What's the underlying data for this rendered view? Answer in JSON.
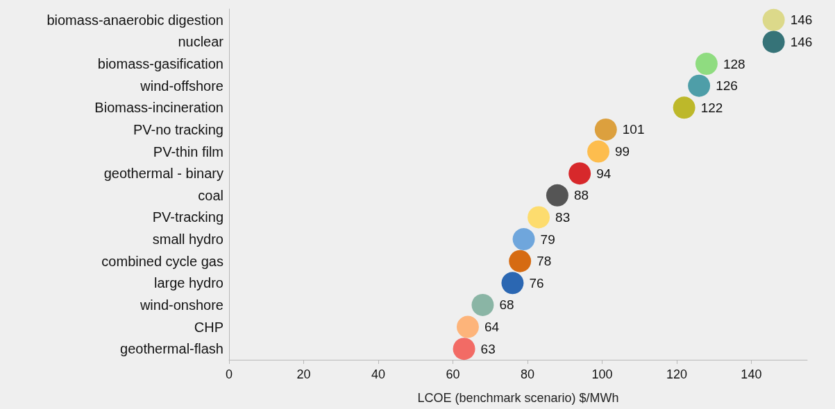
{
  "chart_data": {
    "type": "scatter",
    "orientation": "horizontal",
    "xlabel": "LCOE (benchmark scenario) $/MWh",
    "categories": [
      "biomass-anaerobic digestion",
      "nuclear",
      "biomass-gasification",
      "wind-offshore",
      "Biomass-incineration",
      "PV-no tracking",
      "PV-thin film",
      "geothermal - binary",
      "coal",
      "PV-tracking",
      "small hydro",
      "combined cycle gas",
      "large hydro",
      "wind-onshore",
      "CHP",
      "geothermal-flash"
    ],
    "values": [
      146,
      146,
      128,
      126,
      122,
      101,
      99,
      94,
      88,
      83,
      79,
      78,
      76,
      68,
      64,
      63
    ],
    "colors": [
      "#dcd98a",
      "#367378",
      "#8fdc80",
      "#4e9ea8",
      "#bdb82a",
      "#dca03e",
      "#fdbd4e",
      "#d7282b",
      "#555555",
      "#fddc6e",
      "#6fa6dc",
      "#d66b12",
      "#2b67b2",
      "#8ab5a5",
      "#fdb47a",
      "#f26b65"
    ],
    "xlim": [
      0,
      155
    ],
    "xticks": [
      0,
      20,
      40,
      60,
      80,
      100,
      120,
      140
    ],
    "data_labels": true,
    "grid": false,
    "marker": "circle"
  }
}
